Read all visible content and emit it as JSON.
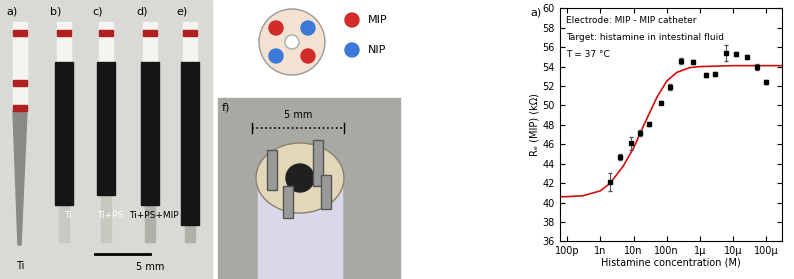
{
  "electrode_photos": {
    "electrodes": [
      {
        "label": "a)",
        "material": "Ti"
      },
      {
        "label": "b)",
        "material": "Ti"
      },
      {
        "label": "c)",
        "material": "Ti+PS"
      },
      {
        "label": "d)",
        "material": "Ti+PS+MIP"
      },
      {
        "label": "e)"
      }
    ],
    "scale_bar": "5 mm"
  },
  "catheter_photo": {
    "label": "f)",
    "scale_bar": "5 mm"
  },
  "electrode_layout": {
    "legend": [
      {
        "name": "MIP",
        "color": "#d42a2a"
      },
      {
        "name": "NIP",
        "color": "#3b78d8"
      }
    ]
  },
  "chart_data": {
    "type": "scatter",
    "label": "a)",
    "annotations": [
      "Electrode: MIP - MIP catheter",
      "Target: histamine in intestinal fluid",
      "T = 37 °C"
    ],
    "x_label": "Histamine concentration (M)",
    "y_label": "Rₑ (MIP) (kΩ)",
    "x": [
      2e-09,
      4e-09,
      8.3e-09,
      1.6e-08,
      3e-08,
      6.6e-08,
      1.26e-07,
      2.7e-07,
      6.3e-07,
      1.5e-06,
      2.8e-06,
      6.2e-06,
      1.2e-05,
      2.6e-05,
      5.2e-05,
      0.0001
    ],
    "values": [
      42.1,
      44.7,
      46.1,
      47.2,
      48.1,
      50.3,
      51.9,
      54.6,
      54.5,
      53.1,
      53.2,
      55.4,
      55.3,
      55.0,
      54.0,
      52.4
    ],
    "error": [
      0.9,
      0.3,
      0.7,
      0.3,
      0.2,
      0.2,
      0.3,
      0.3,
      0.2,
      0.2,
      0.2,
      0.8,
      0.2,
      0.2,
      0.3,
      0.2
    ],
    "color": "#000000",
    "marker": "square",
    "fit": {
      "x": [
        6e-11,
        1e-10,
        3e-10,
        1e-09,
        2e-09,
        5e-09,
        1e-08,
        2e-08,
        5e-08,
        1e-07,
        2e-07,
        5e-07,
        1e-06,
        1e-05,
        0.0001,
        0.0003
      ],
      "values": [
        40.6,
        40.6,
        40.7,
        41.2,
        42.0,
        43.8,
        45.6,
        47.9,
        50.8,
        52.5,
        53.4,
        53.9,
        54.0,
        54.1,
        54.1,
        54.1
      ],
      "color": "#d01010",
      "line_style": "solid"
    },
    "log": "x",
    "xlim": [
      6e-11,
      0.0003
    ],
    "xticks": [
      {
        "value": 1e-10,
        "label": "100p"
      },
      {
        "value": 1e-09,
        "label": "1n"
      },
      {
        "value": 1e-08,
        "label": "10n"
      },
      {
        "value": 1e-07,
        "label": "100n"
      },
      {
        "value": 1e-06,
        "label": "1µ"
      },
      {
        "value": 1e-05,
        "label": "10µ"
      },
      {
        "value": 0.0001,
        "label": "100µ"
      }
    ],
    "ylim": [
      36,
      60
    ],
    "yticks": [
      36,
      38,
      40,
      42,
      44,
      46,
      48,
      50,
      52,
      54,
      56,
      58,
      60
    ],
    "grid": false
  }
}
